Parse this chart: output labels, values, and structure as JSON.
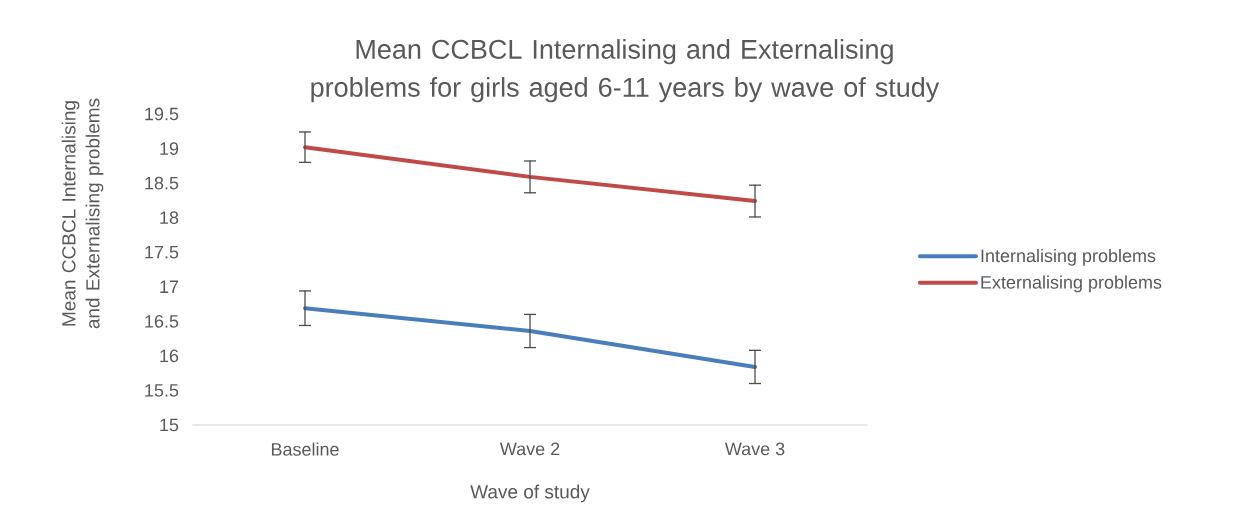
{
  "chart_data": {
    "type": "line",
    "title": "Mean CCBCL Internalising and Externalising problems for girls aged 6-11 years by wave of study",
    "xlabel": "Wave of study",
    "ylabel": "Mean CCBCL Internalising and Externalising problems",
    "categories": [
      "Baseline",
      "Wave 2",
      "Wave 3"
    ],
    "series": [
      {
        "name": "Internalising problems",
        "color": "#4a7ebb",
        "values": [
          16.69,
          16.36,
          15.84
        ],
        "errors": [
          0.25,
          0.24,
          0.24
        ]
      },
      {
        "name": "Externalising problems",
        "color": "#be4b48",
        "values": [
          19.02,
          18.59,
          18.24
        ],
        "errors": [
          0.22,
          0.23,
          0.23
        ]
      }
    ],
    "ylim": [
      15,
      19.5
    ],
    "yticks": [
      15,
      15.5,
      16,
      16.5,
      17,
      17.5,
      18,
      18.5,
      19,
      19.5
    ],
    "grid": false,
    "legend": "right",
    "marker": "none",
    "line_style": "solid"
  }
}
